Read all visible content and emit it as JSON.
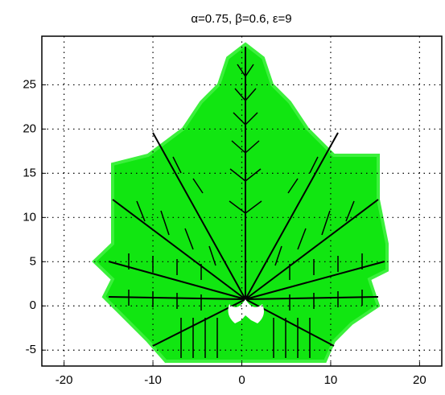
{
  "chart_data": {
    "type": "figure",
    "title": "α=0.75,   β=0.6, ε=9",
    "xlim": [
      -22.5,
      22.5
    ],
    "ylim": [
      -6.8,
      30.5
    ],
    "xticks": [
      -20,
      -10,
      0,
      10,
      20
    ],
    "yticks": [
      -5,
      0,
      5,
      10,
      15,
      20,
      25
    ],
    "grid": true
  }
}
